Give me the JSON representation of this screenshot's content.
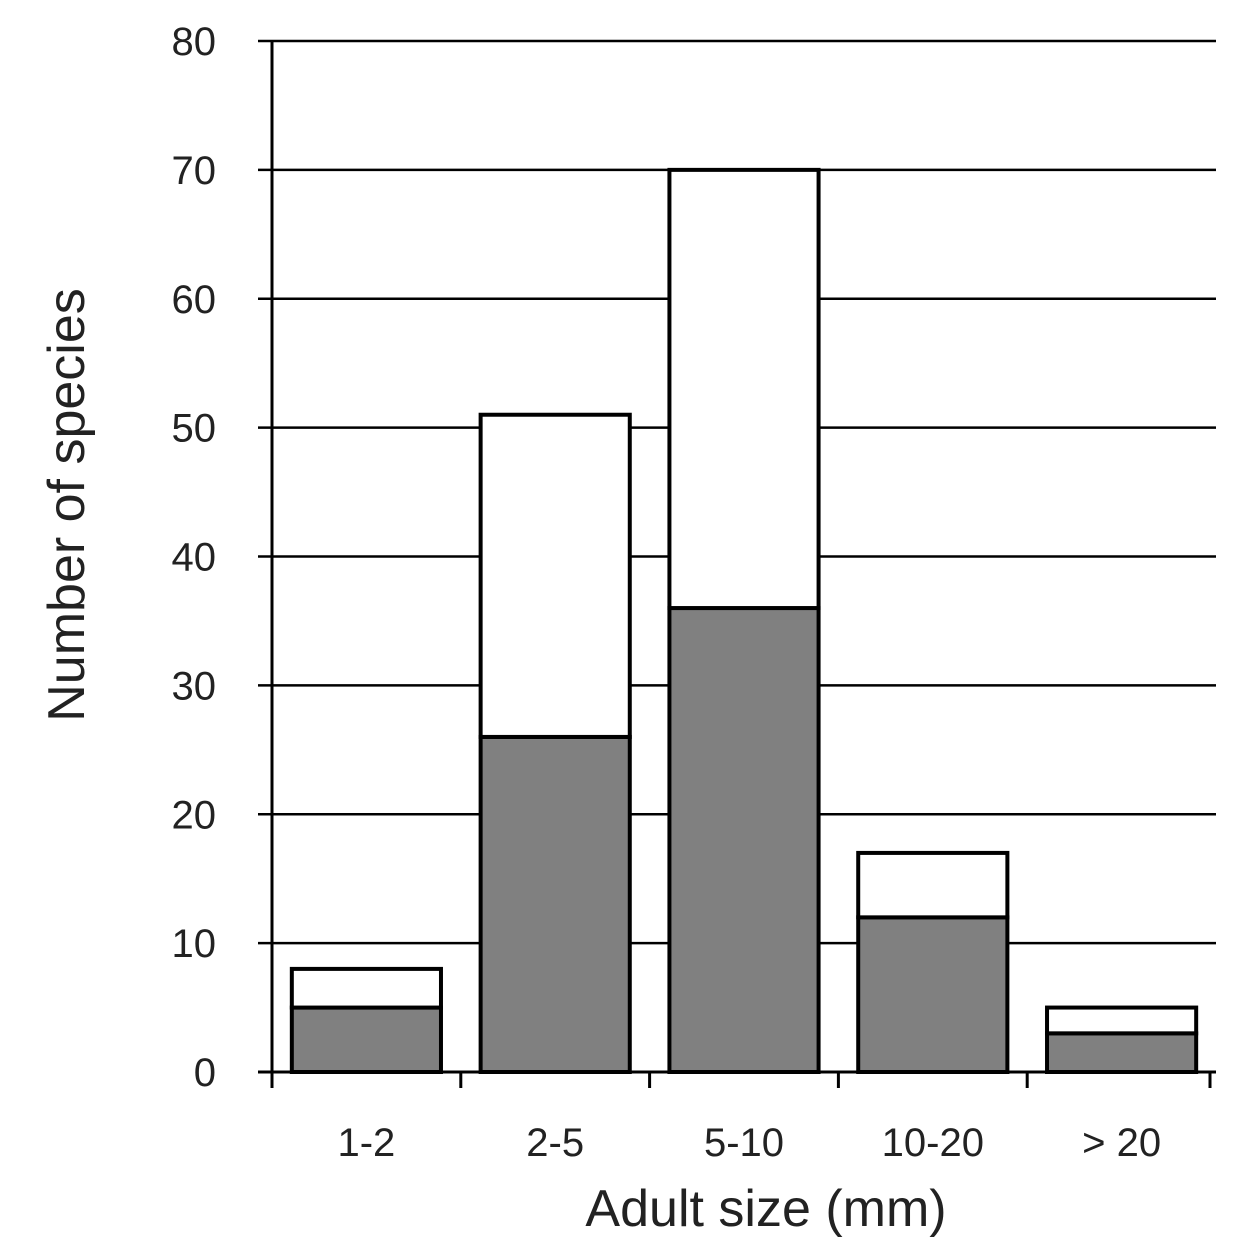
{
  "chart_data": {
    "type": "bar",
    "stacked": true,
    "title": "",
    "xlabel": "Adult size (mm)",
    "ylabel": "Number of species",
    "ylim": [
      0,
      80
    ],
    "yticks": [
      0,
      10,
      20,
      30,
      40,
      50,
      60,
      70,
      80
    ],
    "grid": true,
    "legend": "none",
    "categories": [
      "1-2",
      "2-5",
      "5-10",
      "10-20",
      "> 20"
    ],
    "series": [
      {
        "values": [
          5,
          26,
          36,
          12,
          3
        ],
        "color": "#808080"
      },
      {
        "values": [
          3,
          25,
          34,
          5,
          2
        ],
        "color": "#ffffff"
      }
    ],
    "totals": [
      8,
      51,
      70,
      17,
      5
    ]
  }
}
